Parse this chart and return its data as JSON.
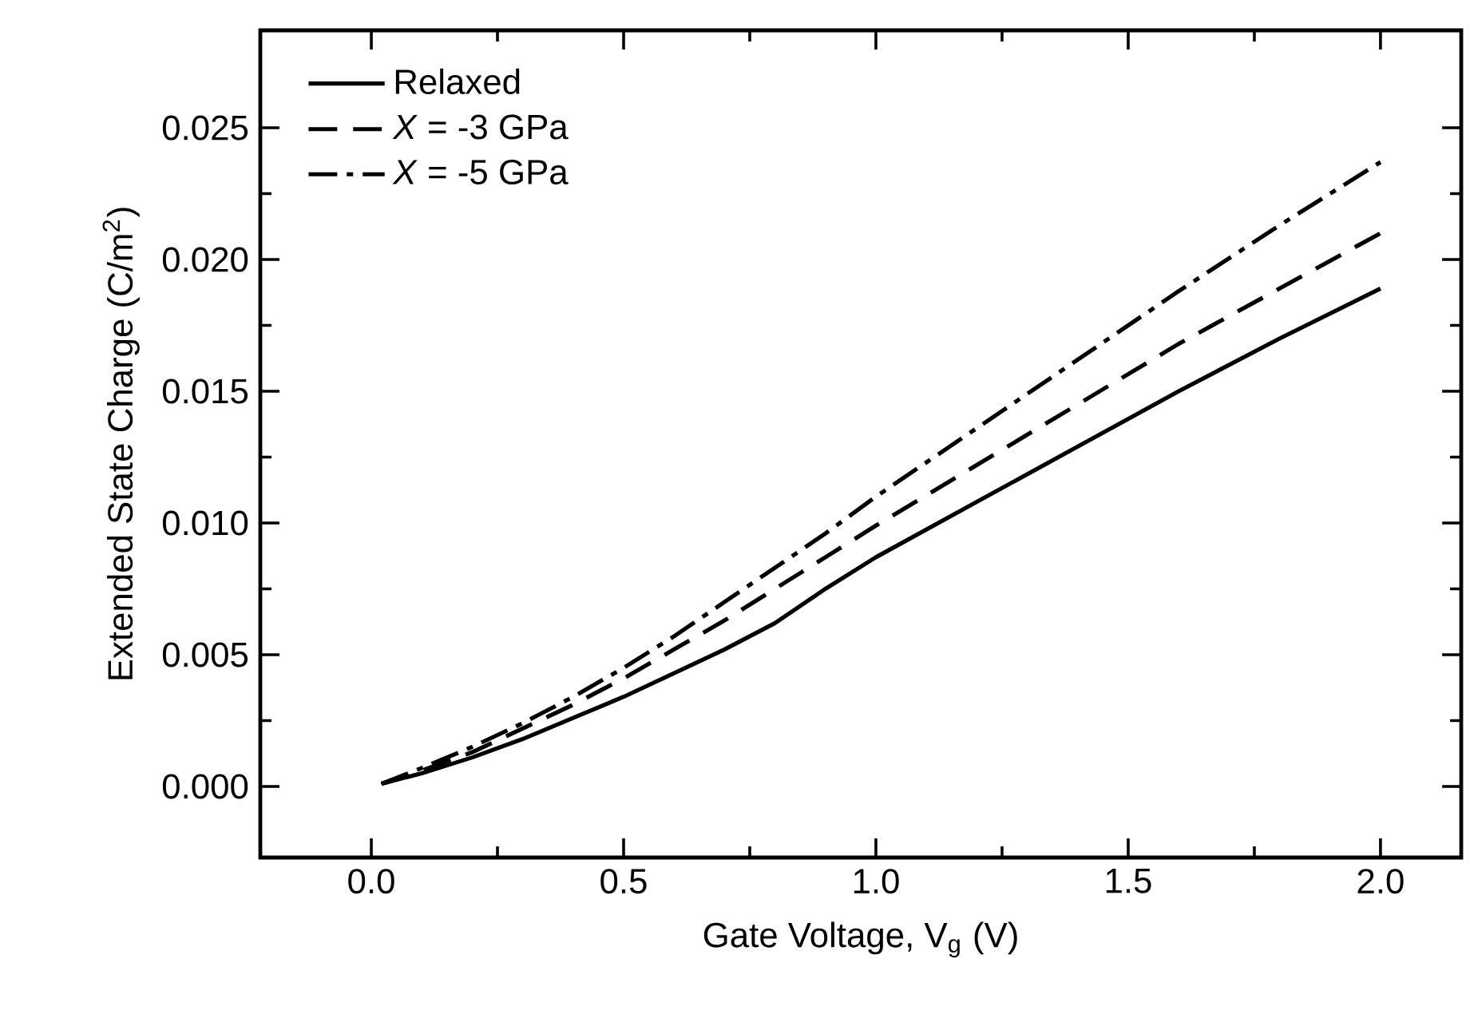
{
  "chart_data": {
    "type": "line",
    "xlabel": "Gate Voltage, V$_{g}$ (V)",
    "ylabel": "Extended State Charge (C/m$^{2}$)",
    "x": [
      0.02,
      0.1,
      0.2,
      0.3,
      0.4,
      0.5,
      0.6,
      0.7,
      0.8,
      0.9,
      1.0,
      1.2,
      1.4,
      1.6,
      1.8,
      2.0
    ],
    "series": [
      {
        "name": "Relaxed",
        "color": "#000000",
        "line_style": "solid",
        "values": [
          0.0001,
          0.0005,
          0.0011,
          0.0018,
          0.0026,
          0.0034,
          0.0043,
          0.0052,
          0.0062,
          0.0075,
          0.0087,
          0.0108,
          0.0129,
          0.015,
          0.017,
          0.0189
        ]
      },
      {
        "name": "*X* = -3 GPa",
        "color": "#000000",
        "line_style": "dashed",
        "values": [
          0.0001,
          0.0006,
          0.0013,
          0.0022,
          0.0031,
          0.0041,
          0.0052,
          0.0063,
          0.0075,
          0.0087,
          0.0099,
          0.0122,
          0.0145,
          0.0168,
          0.0189,
          0.021
        ]
      },
      {
        "name": "*X* = -5 GPa",
        "color": "#000000",
        "line_style": "dashdot",
        "values": [
          0.0001,
          0.0007,
          0.0015,
          0.0024,
          0.0034,
          0.0045,
          0.0057,
          0.007,
          0.0083,
          0.0096,
          0.011,
          0.0136,
          0.0162,
          0.0188,
          0.0213,
          0.0237
        ]
      }
    ],
    "xlim": [
      -0.22,
      2.16
    ],
    "ylim": [
      -0.0027,
      0.0287
    ],
    "xticks": [
      {
        "value": 0,
        "label": "0.0"
      },
      0.5,
      {
        "value": 1,
        "label": "1.0"
      },
      1.5,
      {
        "value": 2,
        "label": "2.0"
      }
    ],
    "yticks": [
      {
        "value": 0,
        "label": "0.000"
      },
      0.005,
      {
        "value": 0.01,
        "label": "0.010"
      },
      0.015,
      {
        "value": 0.02,
        "label": "0.020"
      },
      0.025
    ],
    "legend": "top left",
    "grid": false,
    "marker": "none"
  }
}
